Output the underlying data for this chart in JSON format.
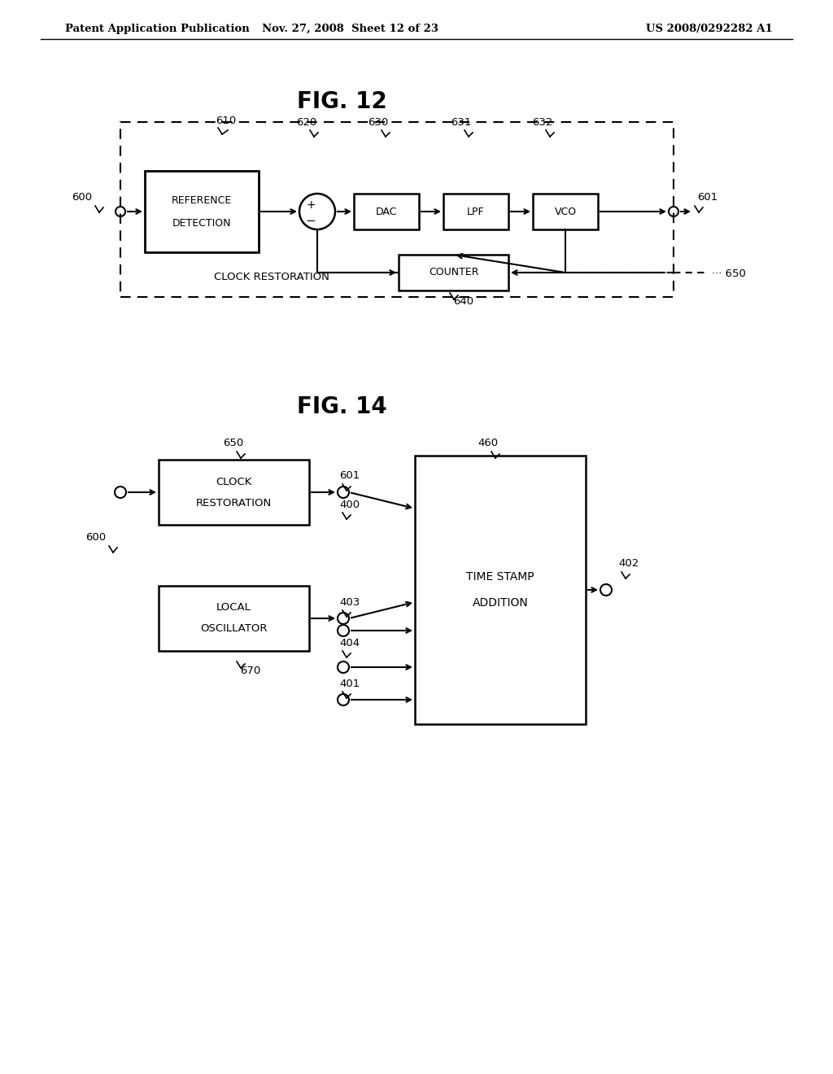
{
  "bg_color": "#ffffff",
  "header_left": "Patent Application Publication",
  "header_mid": "Nov. 27, 2008  Sheet 12 of 23",
  "header_right": "US 2008/0292282 A1"
}
